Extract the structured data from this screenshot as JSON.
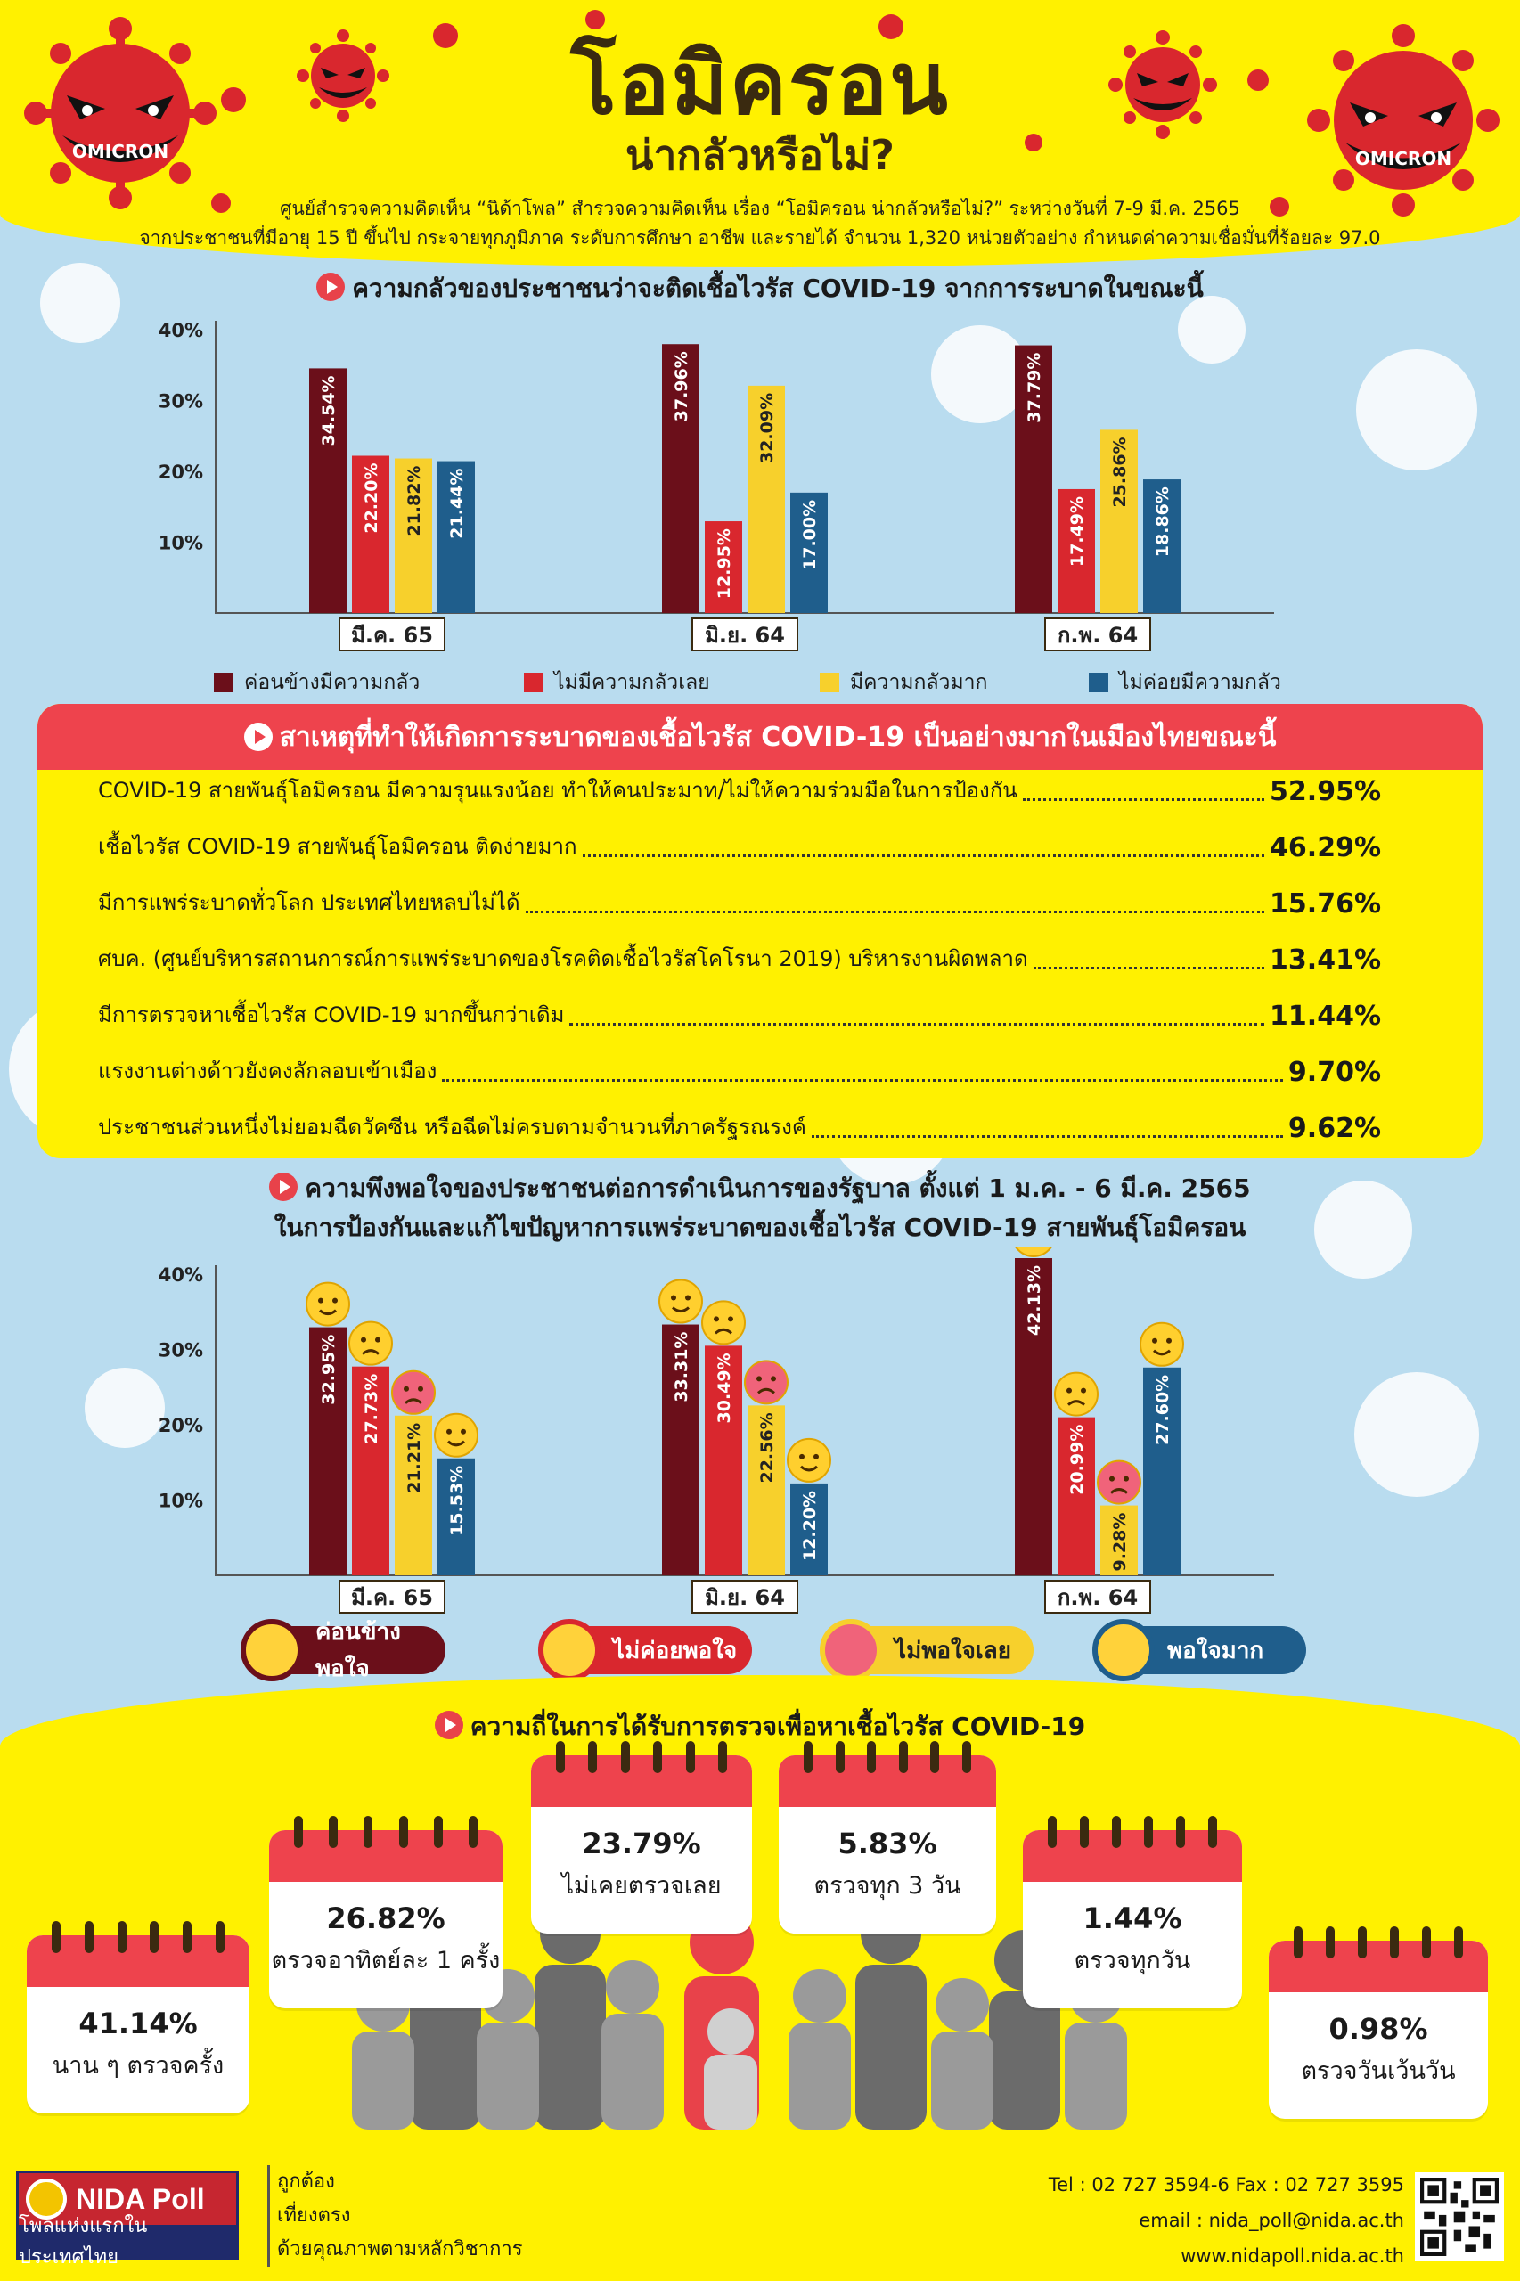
{
  "header": {
    "title": "โอมิครอน",
    "subtitle": "น่ากลัวหรือไม่?",
    "intro_line1": "ศูนย์สำรวจความคิดเห็น “นิด้าโพล” สำรวจความคิดเห็น เรื่อง “โอมิครอน น่ากลัวหรือไม่?” ระหว่างวันที่ 7-9 มี.ค. 2565",
    "intro_line2": "จากประชาชนที่มีอายุ 15 ปี ขึ้นไป กระจายทุกภูมิภาค ระดับการศึกษา อาชีพ และรายได้ จำนวน 1,320 หน่วยตัวอย่าง กำหนดค่าความเชื่อมั่นที่ร้อยละ 97.0",
    "virus_text": "OMICRON"
  },
  "colors": {
    "header_yellow": "#fff100",
    "sky": "#b9dcef",
    "accent_red": "#ee434d",
    "series_maroon": "#6b0f1a",
    "series_red": "#d9272e",
    "series_yellow": "#f7d02c",
    "series_blue": "#1f5e8c"
  },
  "fear_section": {
    "heading": "ความกลัวของประชาชนว่าจะติดเชื้อไวรัส COVID-19 จากการระบาดในขณะนี้"
  },
  "reasons": {
    "heading": "สาเหตุที่ทำให้เกิดการระบาดของเชื้อไวรัส COVID-19 เป็นอย่างมากในเมืองไทยขณะนี้",
    "items": [
      {
        "text": "COVID-19 สายพันธุ์โอมิครอน มีความรุนแรงน้อย ทำให้คนประมาท/ไม่ให้ความร่วมมือในการป้องกัน",
        "value": "52.95%"
      },
      {
        "text": "เชื้อไวรัส COVID-19 สายพันธุ์โอมิครอน ติดง่ายมาก",
        "value": "46.29%"
      },
      {
        "text": "มีการแพร่ระบาดทั่วโลก ประเทศไทยหลบไม่ได้",
        "value": "15.76%"
      },
      {
        "text": "ศบค. (ศูนย์บริหารสถานการณ์การแพร่ระบาดของโรคติดเชื้อไวรัสโคโรนา 2019) บริหารงานผิดพลาด",
        "value": "13.41%"
      },
      {
        "text": "มีการตรวจหาเชื้อไวรัส COVID-19 มากขึ้นกว่าเดิม",
        "value": "11.44%"
      },
      {
        "text": "แรงงานต่างด้าวยังคงลักลอบเข้าเมือง",
        "value": "9.70%"
      },
      {
        "text": "ประชาชนส่วนหนึ่งไม่ยอมฉีดวัคซีน หรือฉีดไม่ครบตามจำนวนที่ภาครัฐรณรงค์",
        "value": "9.62%"
      }
    ]
  },
  "satisfaction_section": {
    "heading_line1": "ความพึงพอใจของประชาชนต่อการดำเนินการของรัฐบาล ตั้งแต่ 1 ม.ค. - 6 มี.ค. 2565",
    "heading_line2": "ในการป้องกันและแก้ไขปัญหาการแพร่ระบาดของเชื้อไวรัส COVID-19 สายพันธุ์โอมิครอน",
    "legend_icons": [
      "wink-face-icon",
      "worried-face-icon",
      "angry-face-icon",
      "heart-eyes-face-icon"
    ]
  },
  "testing": {
    "heading": "ความถี่ในการได้รับการตรวจเพื่อหาเชื้อไวรัส COVID-19",
    "cards": [
      {
        "value": "41.14%",
        "label": "นาน ๆ ตรวจครั้ง"
      },
      {
        "value": "26.82%",
        "label": "ตรวจอาทิตย์ละ 1 ครั้ง"
      },
      {
        "value": "23.79%",
        "label": "ไม่เคยตรวจเลย"
      },
      {
        "value": "5.83%",
        "label": "ตรวจทุก 3 วัน"
      },
      {
        "value": "1.44%",
        "label": "ตรวจทุกวัน"
      },
      {
        "value": "0.98%",
        "label": "ตรวจวันเว้นวัน"
      }
    ]
  },
  "footer": {
    "logo_name": "NIDA Poll",
    "logo_tagline": "โพลแห่งแรกในประเทศไทย",
    "values": [
      "ถูกต้อง",
      "เที่ยงตรง",
      "ด้วยคุณภาพตามหลักวิชาการ"
    ],
    "phone": "Tel : 02 727 3594-6 Fax : 02 727 3595",
    "email": "email : nida_poll@nida.ac.th",
    "website": "www.nidapoll.nida.ac.th"
  },
  "chart_data": [
    {
      "type": "bar",
      "categories": [
        "มี.ค. 65",
        "มิ.ย. 64",
        "ก.พ. 64"
      ],
      "series": [
        {
          "name": "ค่อนข้างมีความกลัว",
          "values": [
            34.54,
            37.96,
            37.79
          ],
          "labels": [
            "34.54%",
            "37.96%",
            "37.79%"
          ]
        },
        {
          "name": "ไม่มีความกลัวเลย",
          "values": [
            22.2,
            12.95,
            17.49
          ],
          "labels": [
            "22.20%",
            "12.95%",
            "17.49%"
          ]
        },
        {
          "name": "มีความกลัวมาก",
          "values": [
            21.82,
            32.09,
            25.86
          ],
          "labels": [
            "21.82%",
            "32.09%",
            "25.86%"
          ]
        },
        {
          "name": "ไม่ค่อยมีความกลัว",
          "values": [
            21.44,
            17.0,
            18.86
          ],
          "labels": [
            "21.44%",
            "17.00%",
            "18.86%"
          ]
        }
      ],
      "yticks": [
        "10%",
        "20%",
        "30%",
        "40%"
      ],
      "ylim": [
        0,
        40
      ],
      "title": "",
      "xlabel": "",
      "ylabel": "",
      "grid": false,
      "legend": "bottom"
    },
    {
      "type": "bar",
      "categories": [
        "มี.ค. 65",
        "มิ.ย. 64",
        "ก.พ. 64"
      ],
      "series": [
        {
          "name": "ค่อนข้างพอใจ",
          "values": [
            32.95,
            33.31,
            42.13
          ],
          "labels": [
            "32.95%",
            "33.31%",
            "42.13%"
          ]
        },
        {
          "name": "ไม่ค่อยพอใจ",
          "values": [
            27.73,
            30.49,
            20.99
          ],
          "labels": [
            "27.73%",
            "30.49%",
            "20.99%"
          ]
        },
        {
          "name": "ไม่พอใจเลย",
          "values": [
            21.21,
            22.56,
            9.28
          ],
          "labels": [
            "21.21%",
            "22.56%",
            "9.28%"
          ]
        },
        {
          "name": "พอใจมาก",
          "values": [
            15.53,
            12.2,
            27.6
          ],
          "labels": [
            "15.53%",
            "12.20%",
            "27.60%"
          ]
        }
      ],
      "yticks": [
        "10%",
        "20%",
        "30%",
        "40%"
      ],
      "ylim": [
        0,
        40
      ],
      "title": "",
      "xlabel": "",
      "ylabel": "",
      "grid": false,
      "legend": "bottom"
    }
  ]
}
